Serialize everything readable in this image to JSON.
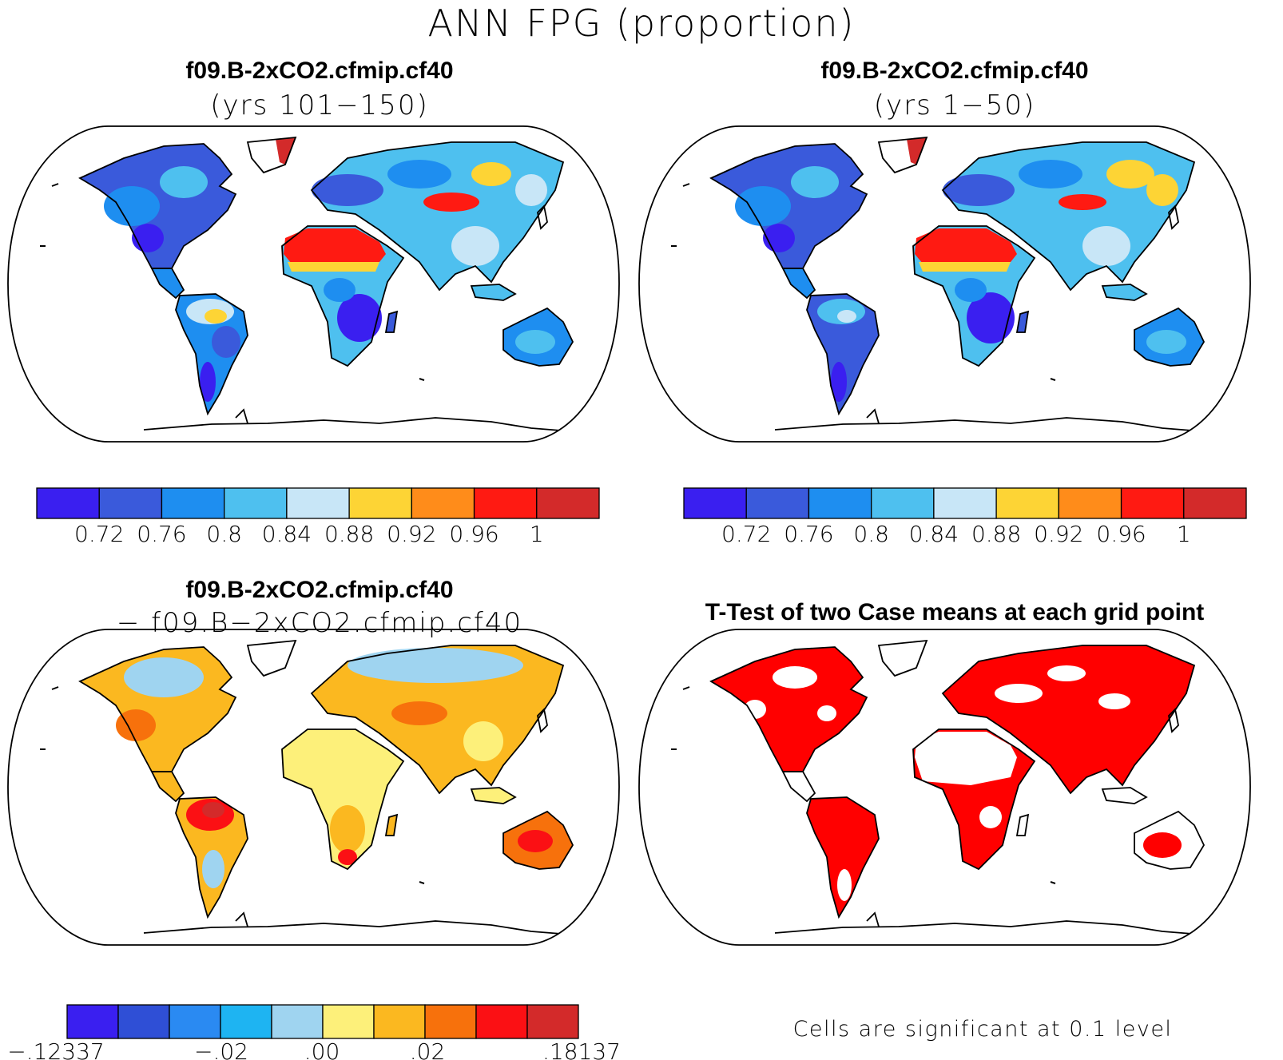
{
  "title": "ANN FPG (proportion)",
  "panels": {
    "top_left": {
      "title": "f09.B-2xCO2.cfmip.cf40",
      "subtitle": "(yrs 101−150)"
    },
    "top_right": {
      "title": "f09.B-2xCO2.cfmip.cf40",
      "subtitle": "(yrs 1−50)"
    },
    "bottom_left": {
      "title": "f09.B-2xCO2.cfmip.cf40",
      "subtitle": "− f09.B−2xCO2.cfmip.cf40"
    },
    "bottom_right": {
      "title": "T-Test of two Case means at each grid point",
      "note": "Cells are significant at 0.1 level"
    }
  },
  "colorbar_fpg": {
    "colors": [
      "#3a1ff0",
      "#3a5adb",
      "#1e8ef0",
      "#4ec0ef",
      "#c8e6f7",
      "#fdd435",
      "#ff8c1a",
      "#ff1a12",
      "#d32a2a"
    ],
    "labels": [
      "0.72",
      "0.76",
      "0.8",
      "0.84",
      "0.88",
      "0.92",
      "0.96",
      "1"
    ]
  },
  "colorbar_diff": {
    "colors": [
      "#3a1ff0",
      "#2f4fd6",
      "#2a8af2",
      "#1eb4f2",
      "#9fd4f0",
      "#fdf07a",
      "#fbb820",
      "#f7710c",
      "#fb1014",
      "#d32a2a"
    ],
    "labels": [
      "−.12337",
      "−.02",
      ".00",
      ".02",
      ".18137"
    ]
  }
}
